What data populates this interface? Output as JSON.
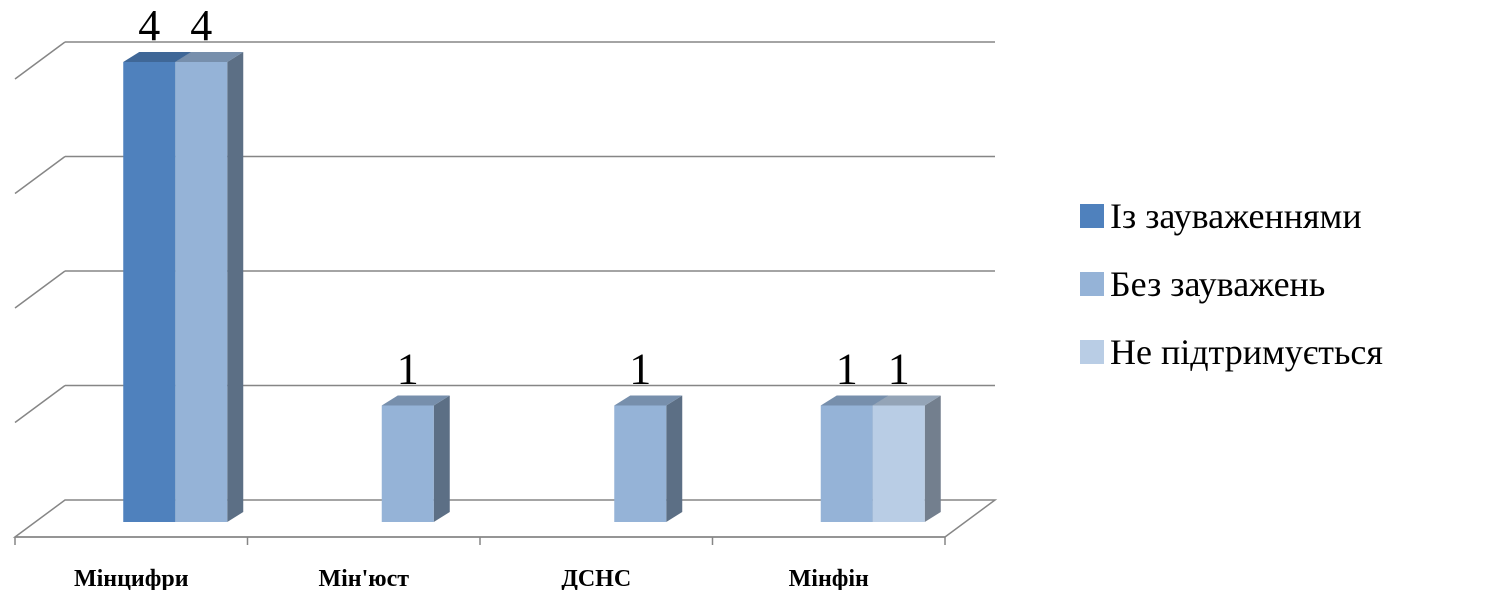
{
  "chart_data": {
    "type": "bar",
    "categories": [
      "Мінцифри",
      "Мін'юст",
      "ДСНС",
      "Мінфін"
    ],
    "series": [
      {
        "name": "Із зауваженнями",
        "color": "#4F81BD",
        "values": [
          4,
          0,
          0,
          0
        ]
      },
      {
        "name": "Без зауважень",
        "color": "#95B3D7",
        "values": [
          4,
          1,
          1,
          1
        ]
      },
      {
        "name": "Не підтримується",
        "color": "#B9CDE5",
        "values": [
          0,
          0,
          0,
          1
        ]
      }
    ],
    "ylim": [
      0,
      4
    ],
    "grid": true,
    "legend": "right",
    "style": "3d-column"
  }
}
